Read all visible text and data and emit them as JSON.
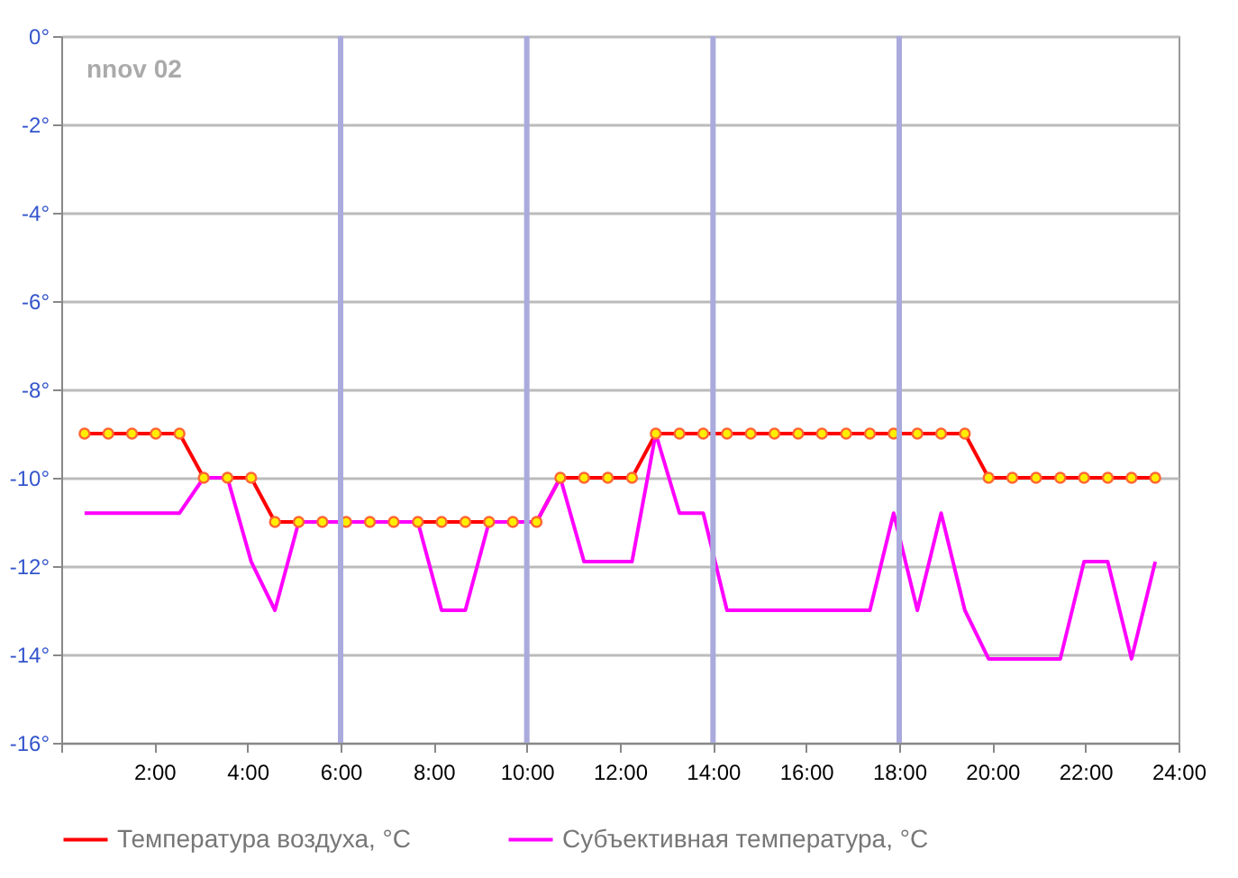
{
  "chart_data": {
    "type": "line",
    "x": [
      0.5,
      1.01,
      1.52,
      2.03,
      2.54,
      3.06,
      3.57,
      4.08,
      4.59,
      5.1,
      5.61,
      6.12,
      6.63,
      7.14,
      7.66,
      8.17,
      8.68,
      9.19,
      9.7,
      10.21,
      10.72,
      11.23,
      11.74,
      12.26,
      12.77,
      13.28,
      13.79,
      14.3,
      14.81,
      15.32,
      15.83,
      16.34,
      16.86,
      17.37,
      17.88,
      18.39,
      18.9,
      19.41,
      19.92,
      20.43,
      20.94,
      21.46,
      21.97,
      22.48,
      22.99,
      23.5
    ],
    "series": [
      {
        "name": "Температура воздуха, °C",
        "color": "#ff0000",
        "marker": "circle",
        "values": [
          -9,
          -9,
          -9,
          -9,
          -9,
          -10,
          -10,
          -10,
          -11,
          -11,
          -11,
          -11,
          -11,
          -11,
          -11,
          -11,
          -11,
          -11,
          -11,
          -11,
          -10,
          -10,
          -10,
          -10,
          -9,
          -9,
          -9,
          -9,
          -9,
          -9,
          -9,
          -9,
          -9,
          -9,
          -9,
          -9,
          -9,
          -9,
          -10,
          -10,
          -10,
          -10,
          -10,
          -10,
          -10,
          -10
        ]
      },
      {
        "name": "Субъективная температура, °C",
        "color": "#ff00ff",
        "marker": "none",
        "values": [
          -10.8,
          -10.8,
          -10.8,
          -10.8,
          -10.8,
          -10,
          -10,
          -11.9,
          -13,
          -11,
          -11,
          -11,
          -11,
          -11,
          -11,
          -13,
          -13,
          -11,
          -11,
          -11,
          -10,
          -11.9,
          -11.9,
          -11.9,
          -9,
          -10.8,
          -10.8,
          -13,
          -13,
          -13,
          -13,
          -13,
          -13,
          -13,
          -10.8,
          -13,
          -10.8,
          -13,
          -14.1,
          -14.1,
          -14.1,
          -14.1,
          -11.9,
          -11.9,
          -14.1,
          -11.9
        ]
      }
    ],
    "annotations": [
      "nnov 02"
    ],
    "xlim": [
      0,
      24
    ],
    "xticks": [
      {
        "value": 0,
        "label": null
      },
      {
        "value": 2,
        "label": "2:00"
      },
      {
        "value": 4,
        "label": "4:00"
      },
      {
        "value": 6,
        "label": "6:00"
      },
      {
        "value": 8,
        "label": "8:00"
      },
      {
        "value": 10,
        "label": "10:00"
      },
      {
        "value": 12,
        "label": "12:00"
      },
      {
        "value": 14,
        "label": "14:00"
      },
      {
        "value": 16,
        "label": "16:00"
      },
      {
        "value": 18,
        "label": "18:00"
      },
      {
        "value": 20,
        "label": "20:00"
      },
      {
        "value": 22,
        "label": "22:00"
      },
      {
        "value": 24,
        "label": "24:00"
      }
    ],
    "ylim": [
      -16,
      0
    ],
    "yticks": [
      {
        "value": 0,
        "label": "0°"
      },
      {
        "value": -2,
        "label": "-2°"
      },
      {
        "value": -4,
        "label": "-4°"
      },
      {
        "value": -6,
        "label": "-6°"
      },
      {
        "value": -8,
        "label": "-8°"
      },
      {
        "value": -10,
        "label": "-10°"
      },
      {
        "value": -12,
        "label": "-12°"
      },
      {
        "value": -14,
        "label": "-14°"
      },
      {
        "value": -16,
        "label": "-16°"
      }
    ],
    "ref_lines": [
      {
        "axis": "x",
        "value": 6,
        "color": "#aaaadd"
      },
      {
        "axis": "x",
        "value": 10,
        "color": "#aaaadd"
      },
      {
        "axis": "x",
        "value": 14,
        "color": "#aaaadd"
      },
      {
        "axis": "x",
        "value": 18,
        "color": "#aaaadd"
      }
    ],
    "grid": "y",
    "legend": "bottom"
  }
}
